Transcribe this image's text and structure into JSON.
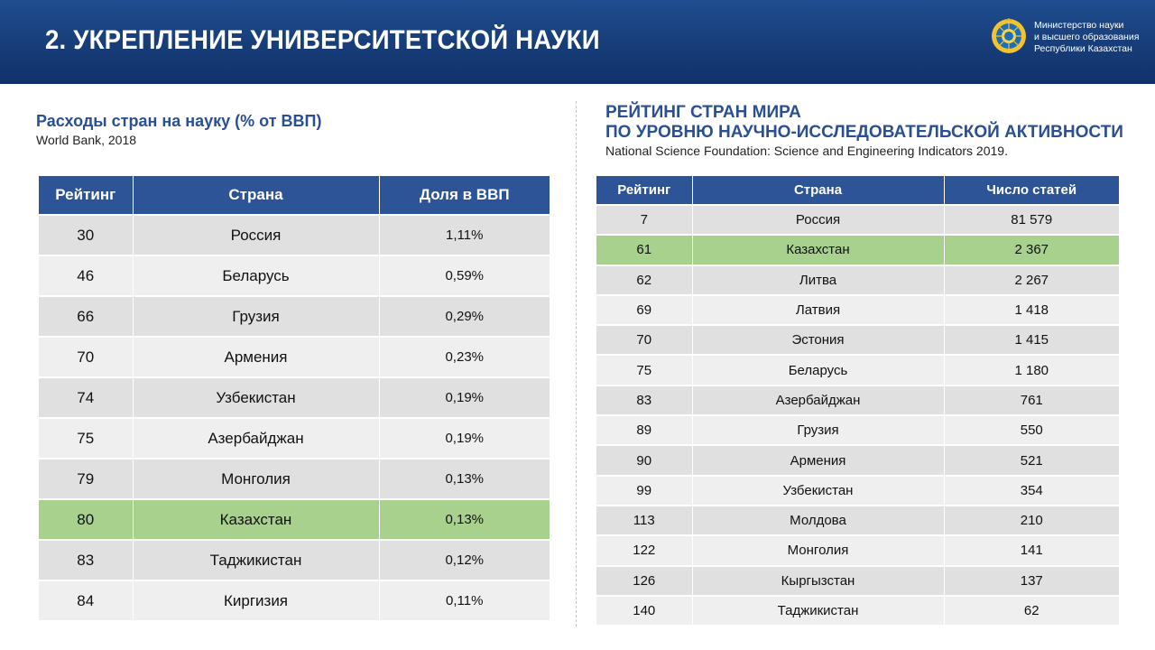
{
  "header": {
    "title": "2. УКРЕПЛЕНИЕ УНИВЕРСИТЕТСКОЙ НАУКИ",
    "ministry_lines": [
      "Министерство науки",
      "и высшего образования",
      "Республики Казахстан"
    ]
  },
  "left": {
    "title": "Расходы стран на науку (% от ВВП)",
    "source": "World Bank, 2018",
    "columns": [
      "Рейтинг",
      "Страна",
      "Доля в ВВП"
    ],
    "rows": [
      {
        "rank": "30",
        "country": "Россия",
        "value": "1,11%"
      },
      {
        "rank": "46",
        "country": "Беларусь",
        "value": "0,59%"
      },
      {
        "rank": "66",
        "country": "Грузия",
        "value": "0,29%"
      },
      {
        "rank": "70",
        "country": "Армения",
        "value": "0,23%"
      },
      {
        "rank": "74",
        "country": "Узбекистан",
        "value": "0,19%"
      },
      {
        "rank": "75",
        "country": "Азербайджан",
        "value": "0,19%"
      },
      {
        "rank": "79",
        "country": "Монголия",
        "value": "0,13%"
      },
      {
        "rank": "80",
        "country": "Казахстан",
        "value": "0,13%",
        "highlight": true
      },
      {
        "rank": "83",
        "country": "Таджикистан",
        "value": "0,12%"
      },
      {
        "rank": "84",
        "country": "Киргизия",
        "value": "0,11%"
      }
    ]
  },
  "right": {
    "title_lines": [
      "РЕЙТИНГ СТРАН МИРА",
      "ПО УРОВНЮ НАУЧНО-ИССЛЕДОВАТЕЛЬСКОЙ АКТИВНОСТИ"
    ],
    "source": "National Science Foundation: Science and Engineering Indicators 2019.",
    "columns": [
      "Рейтинг",
      "Страна",
      "Число статей"
    ],
    "rows": [
      {
        "rank": "7",
        "country": "Россия",
        "value": "81 579"
      },
      {
        "rank": "61",
        "country": "Казахстан",
        "value": "2 367",
        "highlight": true
      },
      {
        "rank": "62",
        "country": "Литва",
        "value": "2 267"
      },
      {
        "rank": "69",
        "country": "Латвия",
        "value": "1 418"
      },
      {
        "rank": "70",
        "country": "Эстония",
        "value": "1 415"
      },
      {
        "rank": "75",
        "country": "Беларусь",
        "value": "1 180"
      },
      {
        "rank": "83",
        "country": "Азербайджан",
        "value": "761"
      },
      {
        "rank": "89",
        "country": "Грузия",
        "value": "550"
      },
      {
        "rank": "90",
        "country": "Армения",
        "value": "521"
      },
      {
        "rank": "99",
        "country": "Узбекистан",
        "value": "354"
      },
      {
        "rank": "113",
        "country": "Молдова",
        "value": "210"
      },
      {
        "rank": "122",
        "country": "Монголия",
        "value": "141"
      },
      {
        "rank": "126",
        "country": "Кыргызстан",
        "value": "137"
      },
      {
        "rank": "140",
        "country": "Таджикистан",
        "value": "62"
      }
    ]
  },
  "colors": {
    "header_bg": "#173d78",
    "table_header": "#2c5497",
    "highlight": "#a9d18e",
    "title_blue": "#2b4f93"
  }
}
